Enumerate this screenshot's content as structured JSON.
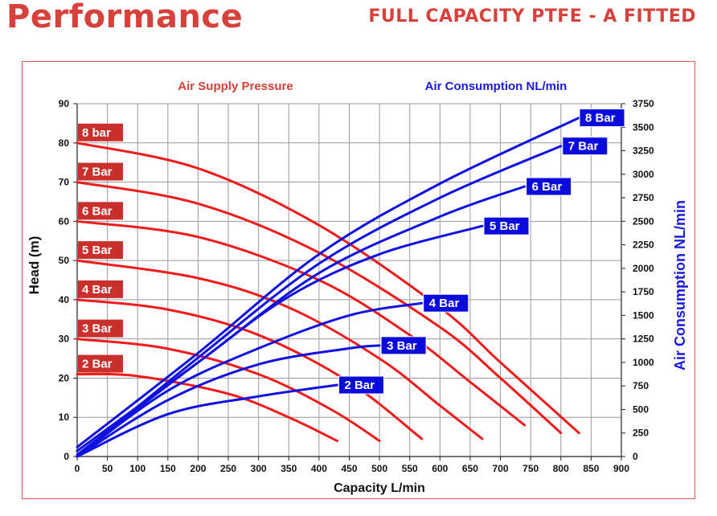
{
  "header": {
    "title": "Performance",
    "subtitle": "FULL CAPACITY PTFE - A FITTED"
  },
  "colors": {
    "brand_red": "#d7413b",
    "curve_red": "#ee1c1c",
    "curve_blue": "#1010e0",
    "label_red_fill": "#c9302c",
    "label_blue_fill": "#0a0adc"
  },
  "chart_data": {
    "type": "line",
    "legend_left": "Air Supply Pressure",
    "legend_right": "Air Consumption NL/min",
    "xlabel": "Capacity L/min",
    "ylabel": "Head (m)",
    "y2label": "Air Consumption NL/min",
    "xlim": [
      0,
      900
    ],
    "ylim": [
      0,
      90
    ],
    "y2lim": [
      0,
      3750
    ],
    "grid": true,
    "x_ticks": [
      "0",
      "50",
      "100",
      "150",
      "200",
      "250",
      "300",
      "350",
      "400",
      "450",
      "500",
      "550",
      "600",
      "650",
      "700",
      "750",
      "800",
      "850",
      "900"
    ],
    "y_ticks": [
      "0",
      "10",
      "20",
      "30",
      "40",
      "50",
      "60",
      "70",
      "80",
      "90"
    ],
    "y2_ticks": [
      "0",
      "250",
      "500",
      "750",
      "1000",
      "1250",
      "1500",
      "1750",
      "2000",
      "2250",
      "2500",
      "2750",
      "3000",
      "3250",
      "3500",
      "3750"
    ],
    "head_series": [
      {
        "name": "8 bar",
        "x": [
          0,
          200,
          400,
          600,
          700,
          830
        ],
        "y": [
          80,
          73.5,
          59,
          38,
          24,
          6
        ]
      },
      {
        "name": "7 Bar",
        "x": [
          0,
          200,
          400,
          600,
          700,
          800
        ],
        "y": [
          70,
          64.5,
          52,
          33,
          20,
          6
        ]
      },
      {
        "name": "6 Bar",
        "x": [
          0,
          200,
          400,
          550,
          650,
          740
        ],
        "y": [
          60,
          56,
          45,
          31,
          19,
          8
        ]
      },
      {
        "name": "5 Bar",
        "x": [
          0,
          200,
          350,
          500,
          600,
          670
        ],
        "y": [
          50,
          45.5,
          38,
          25,
          13,
          4.5
        ]
      },
      {
        "name": "4 Bar",
        "x": [
          0,
          150,
          300,
          450,
          570
        ],
        "y": [
          40,
          37.5,
          31,
          19,
          4.5
        ]
      },
      {
        "name": "3 Bar",
        "x": [
          0,
          150,
          300,
          420,
          500
        ],
        "y": [
          30,
          27.5,
          21,
          12,
          4
        ]
      },
      {
        "name": "2 Bar",
        "x": [
          0,
          100,
          250,
          350,
          430
        ],
        "y": [
          21,
          20.5,
          16,
          10,
          4
        ]
      }
    ],
    "air_series": [
      {
        "name": "8 Bar",
        "x": [
          0,
          200,
          400,
          600,
          830
        ],
        "y": [
          100,
          1100,
          2150,
          2900,
          3600
        ]
      },
      {
        "name": "7 Bar",
        "x": [
          0,
          200,
          400,
          600,
          800
        ],
        "y": [
          0,
          1050,
          2050,
          2750,
          3300
        ]
      },
      {
        "name": "6 Bar",
        "x": [
          0,
          200,
          400,
          600,
          740
        ],
        "y": [
          60,
          1000,
          1950,
          2550,
          2870
        ]
      },
      {
        "name": "5 Bar",
        "x": [
          0,
          200,
          350,
          500,
          670
        ],
        "y": [
          20,
          1000,
          1700,
          2150,
          2450
        ]
      },
      {
        "name": "4 Bar",
        "x": [
          0,
          150,
          300,
          450,
          570
        ],
        "y": [
          0,
          700,
          1150,
          1500,
          1630
        ]
      },
      {
        "name": "3 Bar",
        "x": [
          0,
          150,
          300,
          450,
          500
        ],
        "y": [
          0,
          600,
          980,
          1150,
          1180
        ]
      },
      {
        "name": "2 Bar",
        "x": [
          0,
          150,
          300,
          430
        ],
        "y": [
          0,
          450,
          640,
          760
        ]
      }
    ]
  }
}
